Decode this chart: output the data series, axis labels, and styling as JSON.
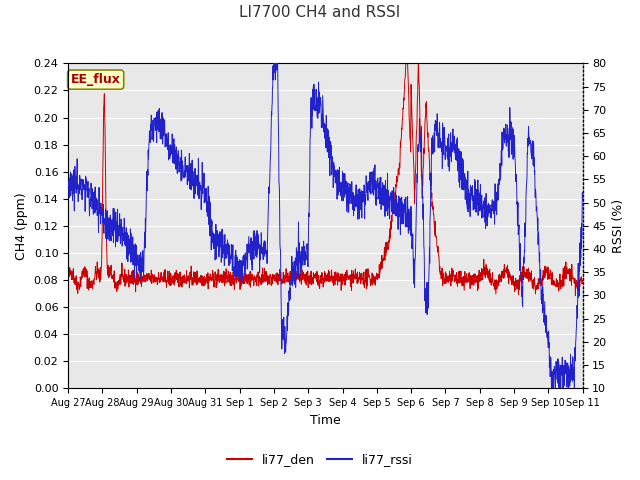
{
  "title": "LI7700 CH4 and RSSI",
  "xlabel": "Time",
  "ylabel_left": "CH4 (ppm)",
  "ylabel_right": "RSSI (%)",
  "annotation": "EE_flux",
  "legend_labels": [
    "li77_den",
    "li77_rssi"
  ],
  "color_red": "#cc0000",
  "color_blue": "#2222cc",
  "fig_bg": "#ffffff",
  "plot_bg": "#e8e8e8",
  "grid_color": "#ffffff",
  "ylim_left": [
    0.0,
    0.24
  ],
  "ylim_right": [
    10,
    80
  ],
  "yticks_left": [
    0.0,
    0.02,
    0.04,
    0.06,
    0.08,
    0.1,
    0.12,
    0.14,
    0.16,
    0.18,
    0.2,
    0.22,
    0.24
  ],
  "yticks_right": [
    10,
    15,
    20,
    25,
    30,
    35,
    40,
    45,
    50,
    55,
    60,
    65,
    70,
    75,
    80
  ],
  "xtick_labels": [
    "Aug 27",
    "Aug 28",
    "Aug 29",
    "Aug 30",
    "Aug 31",
    "Sep 1",
    "Sep 2",
    "Sep 3",
    "Sep 4",
    "Sep 5",
    "Sep 6",
    "Sep 7",
    "Sep 8",
    "Sep 9",
    "Sep 10",
    "Sep 11"
  ],
  "figsize": [
    6.4,
    4.8
  ],
  "dpi": 100
}
